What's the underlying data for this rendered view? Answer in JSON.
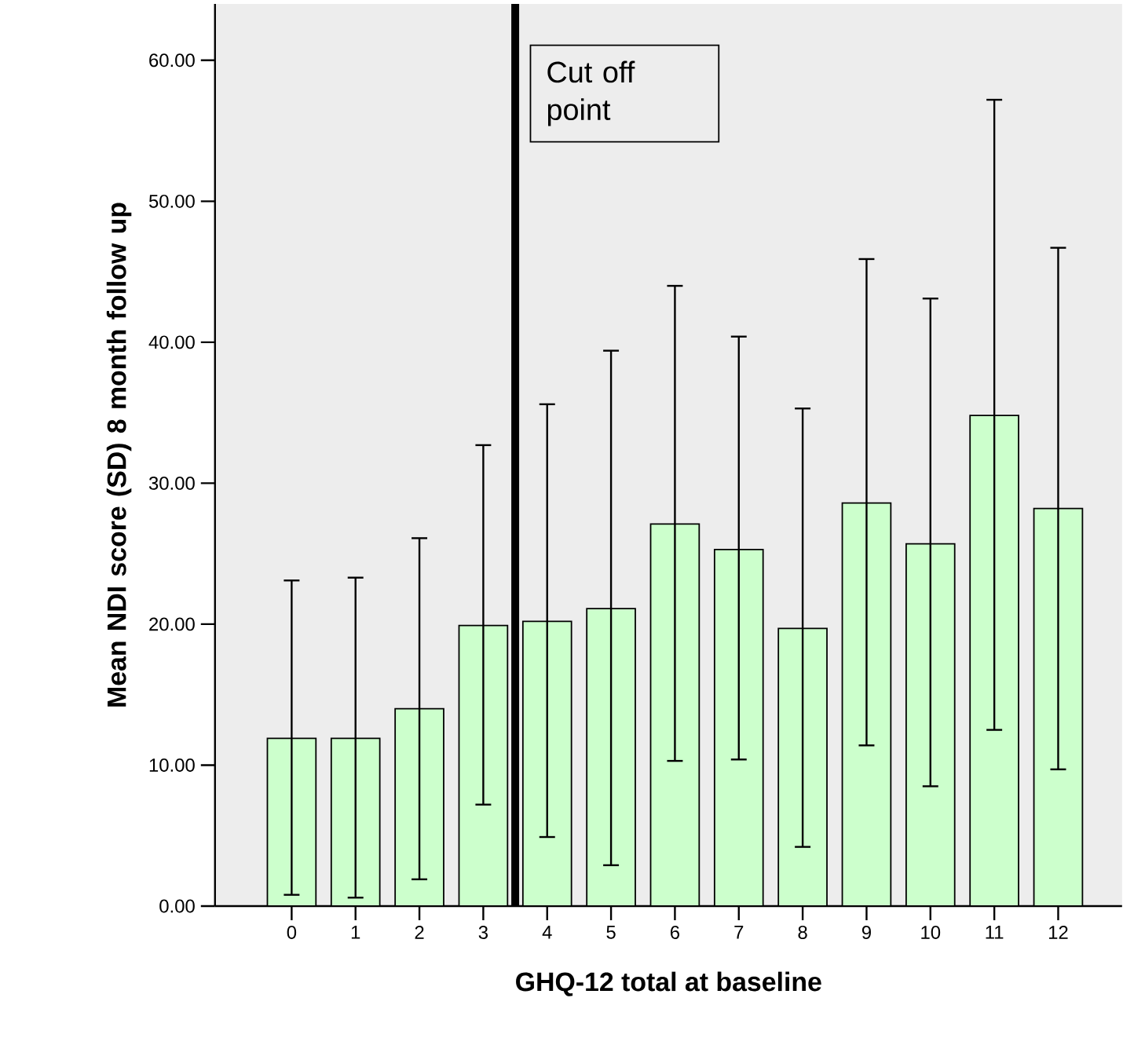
{
  "chart_data": {
    "type": "bar",
    "xlabel": "GHQ-12 total at baseline",
    "ylabel": "Mean NDI score (SD) 8 month follow up",
    "categories": [
      "0",
      "1",
      "2",
      "3",
      "4",
      "5",
      "6",
      "7",
      "8",
      "9",
      "10",
      "11",
      "12"
    ],
    "values": [
      11.9,
      11.9,
      14.0,
      19.9,
      20.2,
      21.1,
      27.1,
      25.3,
      19.7,
      28.6,
      25.7,
      34.8,
      28.2
    ],
    "errors": [
      [
        0.8,
        23.1
      ],
      [
        0.6,
        23.3
      ],
      [
        1.9,
        26.1
      ],
      [
        7.2,
        32.7
      ],
      [
        4.9,
        35.6
      ],
      [
        2.9,
        39.4
      ],
      [
        10.3,
        44.0
      ],
      [
        10.4,
        40.4
      ],
      [
        4.2,
        35.3
      ],
      [
        11.4,
        45.9
      ],
      [
        8.5,
        43.1
      ],
      [
        12.5,
        57.2
      ],
      [
        9.7,
        46.7
      ]
    ],
    "color": "#ccffcc",
    "ylim": [
      0,
      64
    ],
    "yticks": [
      {
        "value": 0,
        "label": "0.00"
      },
      {
        "value": 10,
        "label": "10.00"
      },
      {
        "value": 20,
        "label": "20.00"
      },
      {
        "value": 30,
        "label": "30.00"
      },
      {
        "value": 40,
        "label": "40.00"
      },
      {
        "value": 50,
        "label": "50.00"
      },
      {
        "value": 60,
        "label": "60.00"
      }
    ],
    "annotations": [
      "Cut off point"
    ],
    "grid": false
  }
}
